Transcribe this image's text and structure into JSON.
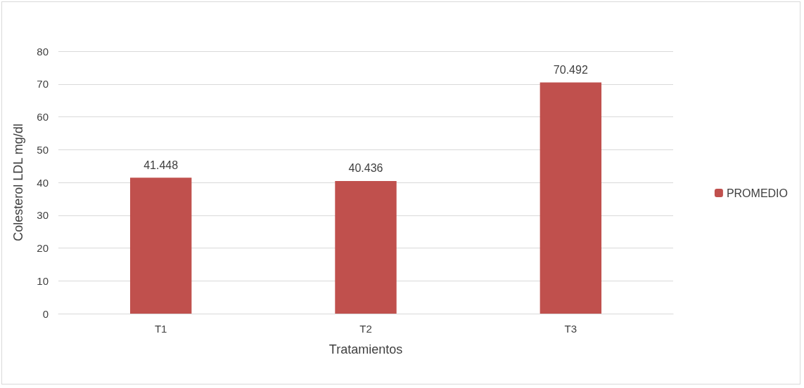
{
  "chart_data": {
    "type": "bar",
    "xlabel": "Tratamientos",
    "ylabel": "Colesterol LDL mg/dl",
    "categories": [
      "T1",
      "T2",
      "T3"
    ],
    "series": [
      {
        "name": "PROMEDIO",
        "color": "#c0504d",
        "values": [
          41.448,
          40.436,
          70.492
        ]
      }
    ],
    "ylim": [
      0,
      80
    ],
    "yticks": [
      0,
      10,
      20,
      30,
      40,
      50,
      60,
      70,
      80
    ],
    "grid": "y",
    "legend": "right",
    "data_labels": true
  }
}
